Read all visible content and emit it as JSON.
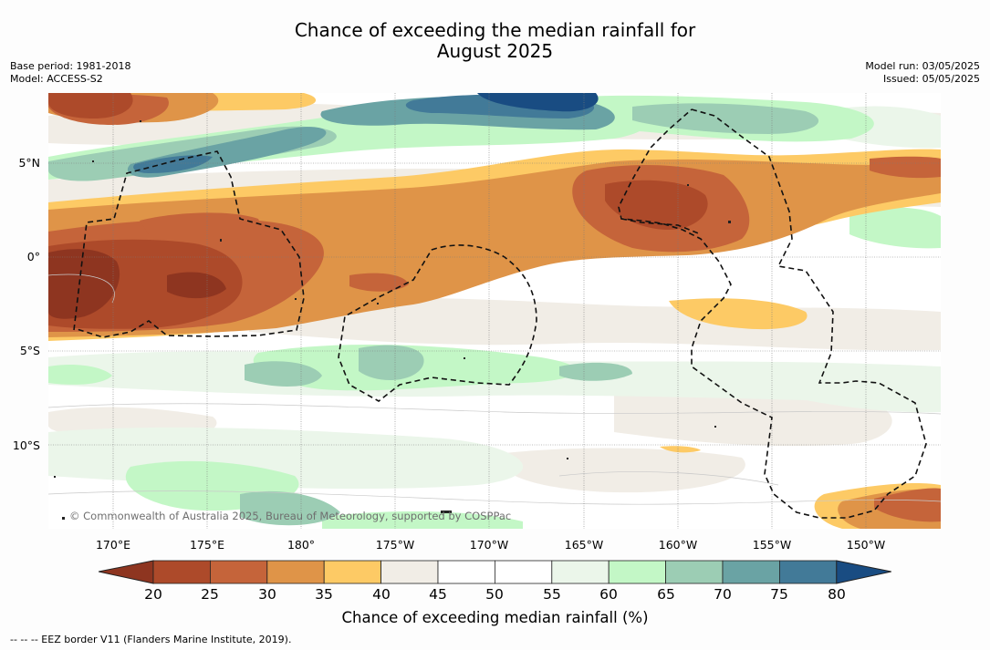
{
  "title_line1": "Chance of exceeding the median rainfall for",
  "title_line2": "August 2025",
  "meta_left": [
    "Base period: 1981-2018",
    "Model: ACCESS-S2"
  ],
  "meta_right": [
    "Model run: 03/05/2025",
    "Issued: 05/05/2025"
  ],
  "lat_labels": [
    "5°N",
    "0°",
    "5°S",
    "10°S"
  ],
  "lon_labels": [
    "170°E",
    "175°E",
    "180°",
    "175°W",
    "170°W",
    "165°W",
    "160°W",
    "155°W",
    "150°W"
  ],
  "colorbar": {
    "ticks": [
      "20",
      "25",
      "30",
      "35",
      "40",
      "45",
      "50",
      "55",
      "60",
      "65",
      "70",
      "75",
      "80"
    ],
    "colors": [
      "#8e3520",
      "#ad4a2a",
      "#c5643a",
      "#df9448",
      "#fdca65",
      "#f1ede6",
      "#ffffff",
      "#ffffff",
      "#ebf6ea",
      "#c3f7c6",
      "#9ccdb4",
      "#6aa3a4",
      "#427a98",
      "#194c82"
    ],
    "label": "Chance of exceeding median rainfall (%)"
  },
  "legend_note": "--  --  -- EEZ border V11 (Flanders Marine Institute, 2019).",
  "copyright": "© Commonwealth of Australia 2025, Bureau of Meteorology, supported by COSPPac"
}
